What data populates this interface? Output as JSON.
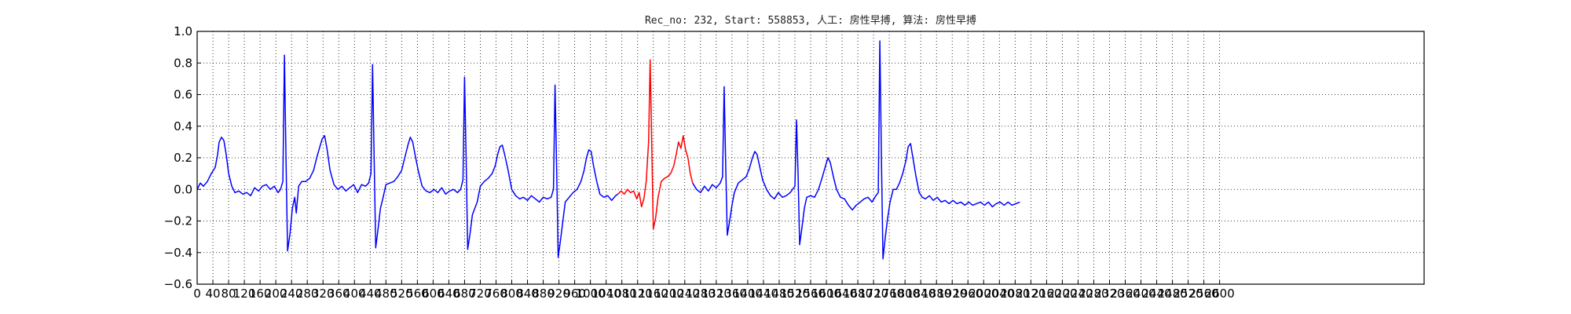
{
  "chart_data": {
    "type": "line",
    "title": "Rec_no: 232, Start: 558853, 人工: 房性早搏, 算法: 房性早搏",
    "xlabel": "",
    "ylabel": "",
    "xlim": [
      0,
      3120
    ],
    "ylim": [
      -0.6,
      1.0
    ],
    "grid": true,
    "grid_style": "dotted",
    "yticks": [
      -0.6,
      -0.4,
      -0.2,
      0.0,
      0.2,
      0.4,
      0.6,
      0.8,
      1.0
    ],
    "ytick_labels": [
      "−0.6",
      "−0.4",
      "−0.2",
      "0.0",
      "0.2",
      "0.4",
      "0.6",
      "0.8",
      "1.0"
    ],
    "xticks": [
      0,
      40,
      80,
      120,
      160,
      200,
      240,
      280,
      320,
      360,
      400,
      440,
      480,
      520,
      560,
      600,
      640,
      680,
      720,
      760,
      800,
      840,
      880,
      920,
      960,
      1000,
      1040,
      1080,
      1120,
      1160,
      1200,
      1240,
      1280,
      1320,
      1360,
      1400,
      1440,
      1480,
      1520,
      1560,
      1600,
      1640,
      1680,
      1720,
      1760,
      1800,
      1840,
      1880,
      1920,
      1960,
      2000,
      2040,
      2080,
      2120,
      2160,
      2200,
      2240,
      2280,
      2320,
      2360,
      2400,
      2440,
      2480,
      2520,
      2560,
      2600
    ],
    "series": [
      {
        "color": "#0000ff",
        "segment": "before",
        "points": [
          [
            0,
            0.0
          ],
          [
            8,
            0.04
          ],
          [
            16,
            0.02
          ],
          [
            26,
            0.05
          ],
          [
            36,
            0.1
          ],
          [
            46,
            0.14
          ],
          [
            52,
            0.22
          ],
          [
            56,
            0.3
          ],
          [
            62,
            0.33
          ],
          [
            68,
            0.31
          ],
          [
            74,
            0.22
          ],
          [
            80,
            0.1
          ],
          [
            88,
            0.02
          ],
          [
            96,
            -0.02
          ],
          [
            106,
            -0.01
          ],
          [
            116,
            -0.03
          ],
          [
            126,
            -0.02
          ],
          [
            136,
            -0.04
          ],
          [
            146,
            0.01
          ],
          [
            156,
            -0.01
          ],
          [
            166,
            0.02
          ],
          [
            176,
            0.03
          ],
          [
            186,
            0.0
          ],
          [
            196,
            0.02
          ],
          [
            206,
            -0.02
          ],
          [
            212,
            0.0
          ],
          [
            218,
            0.05
          ],
          [
            222,
            0.85
          ],
          [
            226,
            0.2
          ],
          [
            230,
            -0.39
          ],
          [
            236,
            -0.28
          ],
          [
            242,
            -0.12
          ],
          [
            248,
            -0.05
          ],
          [
            252,
            -0.15
          ],
          [
            258,
            0.02
          ],
          [
            266,
            0.05
          ],
          [
            276,
            0.05
          ],
          [
            286,
            0.07
          ],
          [
            296,
            0.12
          ],
          [
            304,
            0.2
          ],
          [
            312,
            0.27
          ],
          [
            318,
            0.32
          ],
          [
            324,
            0.34
          ],
          [
            330,
            0.26
          ],
          [
            338,
            0.12
          ],
          [
            348,
            0.03
          ],
          [
            358,
            0.0
          ],
          [
            368,
            0.02
          ],
          [
            378,
            -0.01
          ],
          [
            388,
            0.01
          ],
          [
            398,
            0.03
          ],
          [
            408,
            -0.02
          ],
          [
            418,
            0.03
          ],
          [
            428,
            0.02
          ],
          [
            436,
            0.04
          ],
          [
            442,
            0.1
          ],
          [
            446,
            0.79
          ],
          [
            450,
            0.2
          ],
          [
            454,
            -0.37
          ],
          [
            460,
            -0.25
          ],
          [
            466,
            -0.12
          ],
          [
            472,
            -0.06
          ],
          [
            480,
            0.03
          ],
          [
            490,
            0.04
          ],
          [
            500,
            0.05
          ],
          [
            510,
            0.08
          ],
          [
            520,
            0.12
          ],
          [
            528,
            0.2
          ],
          [
            536,
            0.28
          ],
          [
            542,
            0.33
          ],
          [
            548,
            0.3
          ],
          [
            554,
            0.22
          ],
          [
            562,
            0.12
          ],
          [
            572,
            0.02
          ],
          [
            582,
            -0.01
          ],
          [
            592,
            -0.02
          ],
          [
            602,
            0.0
          ],
          [
            612,
            -0.02
          ],
          [
            622,
            0.01
          ],
          [
            632,
            -0.03
          ],
          [
            642,
            -0.01
          ],
          [
            652,
            0.0
          ],
          [
            662,
            -0.02
          ],
          [
            670,
            0.0
          ],
          [
            676,
            0.06
          ],
          [
            680,
            0.71
          ],
          [
            684,
            0.2
          ],
          [
            688,
            -0.38
          ],
          [
            694,
            -0.28
          ],
          [
            700,
            -0.16
          ],
          [
            706,
            -0.12
          ],
          [
            712,
            -0.08
          ],
          [
            720,
            0.02
          ],
          [
            730,
            0.05
          ],
          [
            740,
            0.07
          ],
          [
            750,
            0.1
          ],
          [
            758,
            0.15
          ],
          [
            764,
            0.22
          ],
          [
            770,
            0.27
          ],
          [
            776,
            0.28
          ],
          [
            782,
            0.22
          ],
          [
            790,
            0.13
          ],
          [
            800,
            0.0
          ],
          [
            810,
            -0.04
          ],
          [
            820,
            -0.06
          ],
          [
            830,
            -0.05
          ],
          [
            840,
            -0.07
          ],
          [
            850,
            -0.04
          ],
          [
            860,
            -0.06
          ],
          [
            870,
            -0.08
          ],
          [
            880,
            -0.05
          ],
          [
            890,
            -0.06
          ],
          [
            900,
            -0.05
          ],
          [
            906,
            0.0
          ],
          [
            910,
            0.66
          ],
          [
            914,
            0.15
          ],
          [
            918,
            -0.43
          ],
          [
            924,
            -0.32
          ],
          [
            930,
            -0.2
          ],
          [
            936,
            -0.08
          ],
          [
            946,
            -0.05
          ],
          [
            956,
            -0.02
          ],
          [
            966,
            0.0
          ],
          [
            976,
            0.05
          ],
          [
            984,
            0.12
          ],
          [
            990,
            0.2
          ],
          [
            996,
            0.25
          ],
          [
            1002,
            0.24
          ],
          [
            1008,
            0.15
          ],
          [
            1016,
            0.05
          ],
          [
            1024,
            -0.03
          ],
          [
            1034,
            -0.05
          ],
          [
            1044,
            -0.04
          ],
          [
            1054,
            -0.07
          ],
          [
            1064,
            -0.04
          ],
          [
            1070,
            -0.03
          ]
        ]
      },
      {
        "color": "#ff0000",
        "segment": "annotated-beat",
        "points": [
          [
            1070,
            -0.03
          ],
          [
            1078,
            -0.01
          ],
          [
            1086,
            -0.03
          ],
          [
            1094,
            0.0
          ],
          [
            1102,
            -0.02
          ],
          [
            1110,
            -0.01
          ],
          [
            1118,
            -0.06
          ],
          [
            1124,
            -0.02
          ],
          [
            1130,
            -0.11
          ],
          [
            1136,
            -0.06
          ],
          [
            1142,
            0.05
          ],
          [
            1148,
            0.3
          ],
          [
            1152,
            0.82
          ],
          [
            1156,
            0.3
          ],
          [
            1160,
            -0.25
          ],
          [
            1166,
            -0.18
          ],
          [
            1172,
            -0.05
          ],
          [
            1180,
            0.05
          ],
          [
            1188,
            0.07
          ],
          [
            1196,
            0.08
          ],
          [
            1204,
            0.1
          ],
          [
            1212,
            0.15
          ],
          [
            1218,
            0.22
          ],
          [
            1224,
            0.3
          ],
          [
            1230,
            0.26
          ],
          [
            1236,
            0.34
          ],
          [
            1242,
            0.25
          ],
          [
            1248,
            0.2
          ],
          [
            1254,
            0.1
          ],
          [
            1260,
            0.04
          ]
        ]
      },
      {
        "color": "#0000ff",
        "segment": "after",
        "points": [
          [
            1260,
            0.04
          ],
          [
            1270,
            0.0
          ],
          [
            1280,
            -0.02
          ],
          [
            1290,
            0.02
          ],
          [
            1300,
            -0.01
          ],
          [
            1310,
            0.03
          ],
          [
            1320,
            0.01
          ],
          [
            1330,
            0.04
          ],
          [
            1336,
            0.08
          ],
          [
            1340,
            0.65
          ],
          [
            1344,
            0.15
          ],
          [
            1348,
            -0.29
          ],
          [
            1354,
            -0.2
          ],
          [
            1360,
            -0.1
          ],
          [
            1366,
            -0.02
          ],
          [
            1376,
            0.04
          ],
          [
            1386,
            0.06
          ],
          [
            1396,
            0.08
          ],
          [
            1404,
            0.13
          ],
          [
            1412,
            0.2
          ],
          [
            1418,
            0.24
          ],
          [
            1424,
            0.22
          ],
          [
            1430,
            0.15
          ],
          [
            1438,
            0.06
          ],
          [
            1448,
            0.0
          ],
          [
            1458,
            -0.04
          ],
          [
            1468,
            -0.06
          ],
          [
            1478,
            -0.02
          ],
          [
            1488,
            -0.05
          ],
          [
            1498,
            -0.04
          ],
          [
            1508,
            -0.02
          ],
          [
            1514,
            0.0
          ],
          [
            1520,
            0.02
          ],
          [
            1524,
            0.44
          ],
          [
            1528,
            0.1
          ],
          [
            1532,
            -0.35
          ],
          [
            1538,
            -0.24
          ],
          [
            1544,
            -0.12
          ],
          [
            1550,
            -0.05
          ],
          [
            1560,
            -0.04
          ],
          [
            1570,
            -0.05
          ],
          [
            1580,
            0.0
          ],
          [
            1590,
            0.08
          ],
          [
            1598,
            0.15
          ],
          [
            1604,
            0.2
          ],
          [
            1610,
            0.17
          ],
          [
            1618,
            0.08
          ],
          [
            1626,
            0.0
          ],
          [
            1636,
            -0.05
          ],
          [
            1646,
            -0.06
          ],
          [
            1656,
            -0.1
          ],
          [
            1666,
            -0.13
          ],
          [
            1676,
            -0.1
          ],
          [
            1686,
            -0.08
          ],
          [
            1696,
            -0.06
          ],
          [
            1706,
            -0.05
          ],
          [
            1716,
            -0.08
          ],
          [
            1726,
            -0.04
          ],
          [
            1732,
            -0.02
          ],
          [
            1736,
            0.94
          ],
          [
            1740,
            0.2
          ],
          [
            1744,
            -0.44
          ],
          [
            1750,
            -0.3
          ],
          [
            1756,
            -0.18
          ],
          [
            1762,
            -0.08
          ],
          [
            1770,
            0.0
          ],
          [
            1778,
            0.0
          ],
          [
            1786,
            0.04
          ],
          [
            1794,
            0.1
          ],
          [
            1802,
            0.18
          ],
          [
            1808,
            0.27
          ],
          [
            1814,
            0.29
          ],
          [
            1820,
            0.2
          ],
          [
            1828,
            0.08
          ],
          [
            1836,
            -0.02
          ],
          [
            1844,
            -0.05
          ],
          [
            1852,
            -0.06
          ],
          [
            1862,
            -0.04
          ],
          [
            1872,
            -0.07
          ],
          [
            1882,
            -0.05
          ],
          [
            1892,
            -0.08
          ],
          [
            1902,
            -0.07
          ],
          [
            1912,
            -0.09
          ],
          [
            1922,
            -0.07
          ],
          [
            1932,
            -0.09
          ],
          [
            1942,
            -0.08
          ],
          [
            1952,
            -0.1
          ],
          [
            1962,
            -0.08
          ],
          [
            1972,
            -0.1
          ],
          [
            1982,
            -0.09
          ],
          [
            1992,
            -0.08
          ],
          [
            2002,
            -0.1
          ],
          [
            2012,
            -0.08
          ],
          [
            2022,
            -0.11
          ],
          [
            2032,
            -0.09
          ],
          [
            2042,
            -0.08
          ],
          [
            2052,
            -0.1
          ],
          [
            2062,
            -0.08
          ],
          [
            2072,
            -0.1
          ],
          [
            2082,
            -0.09
          ],
          [
            2092,
            -0.08
          ]
        ]
      }
    ]
  }
}
